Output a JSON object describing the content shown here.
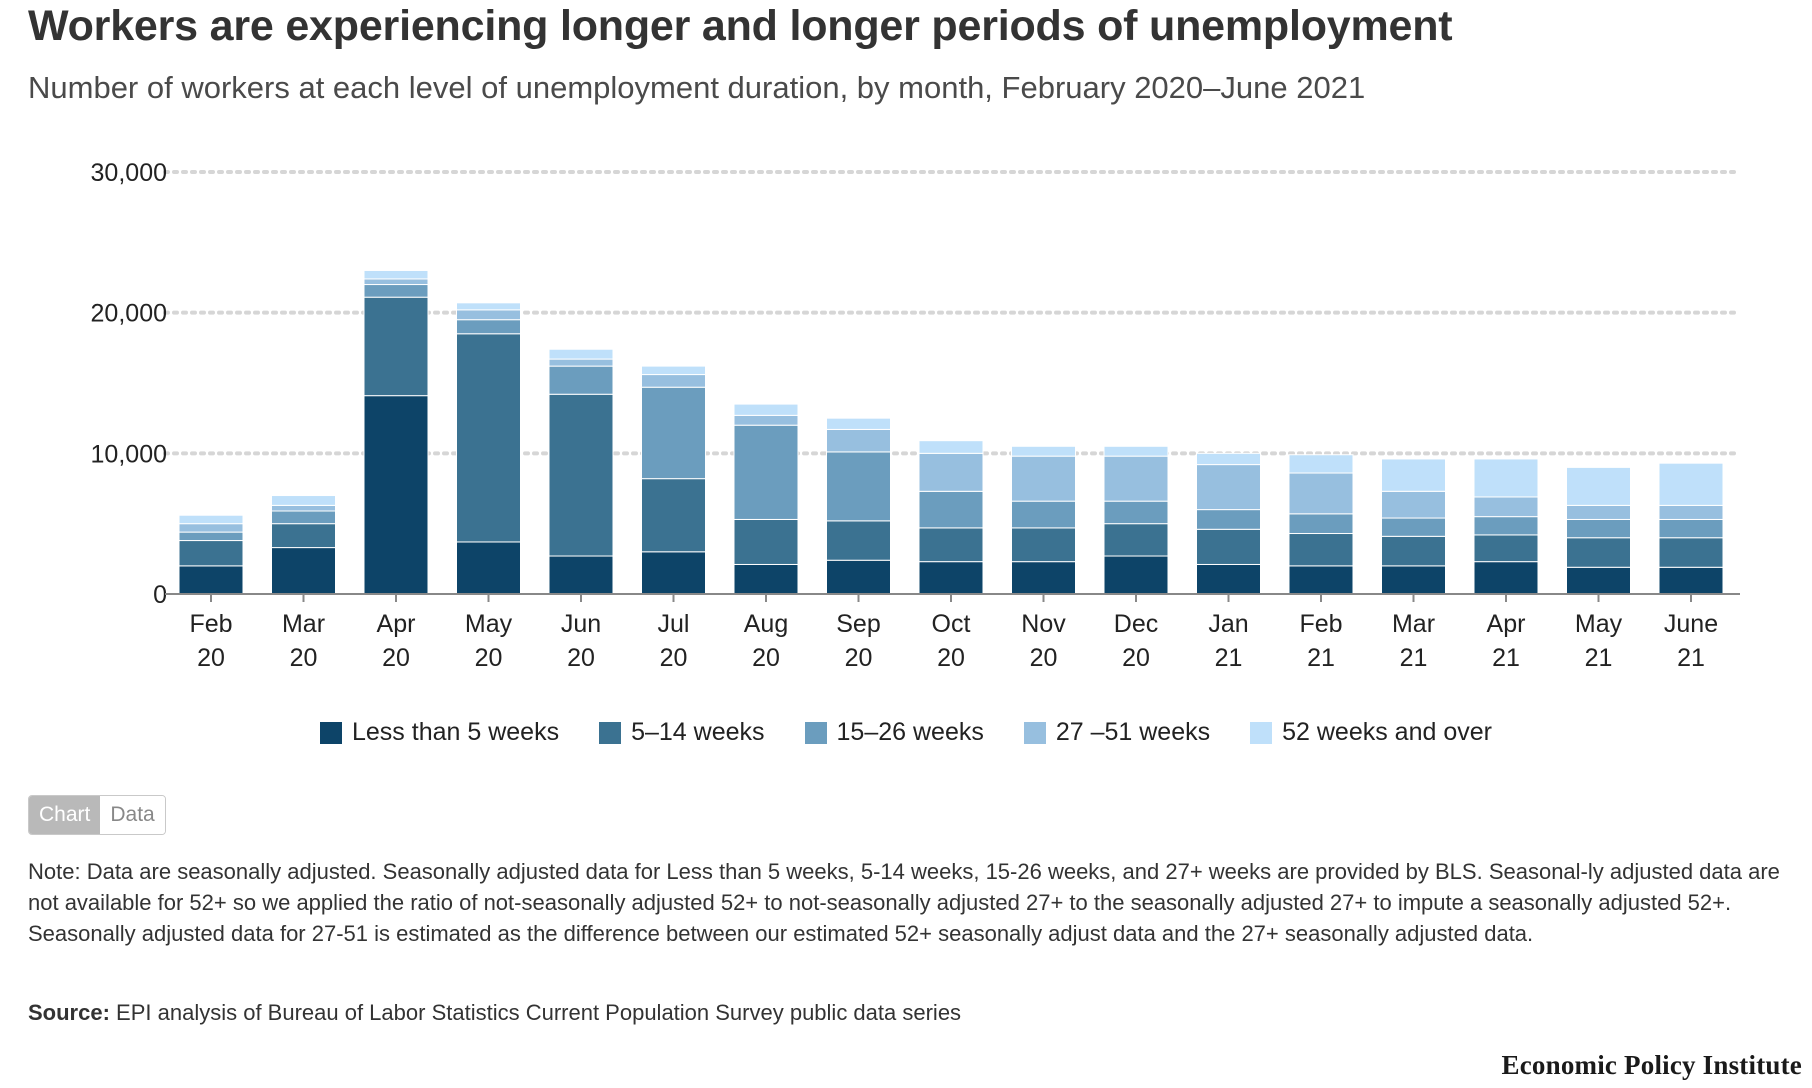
{
  "title": "Workers are experiencing longer and longer periods of unemployment",
  "subtitle": "Number of workers at each level of unemployment duration, by month, February 2020–June 2021",
  "chart_data": {
    "type": "bar",
    "stacked": true,
    "title": "Workers are experiencing longer and longer periods of unemployment",
    "subtitle": "Number of workers at each level of unemployment duration, by month, February 2020–June 2021",
    "xlabel": "",
    "ylabel": "",
    "ylim": [
      0,
      30000
    ],
    "yticks": [
      0,
      10000,
      20000,
      30000
    ],
    "ytick_labels": [
      "0",
      "10,000",
      "20,000",
      "30,000"
    ],
    "grid": "horizontal dotted",
    "legend_position": "bottom",
    "categories": [
      {
        "line1": "Feb",
        "line2": "20"
      },
      {
        "line1": "Mar",
        "line2": "20"
      },
      {
        "line1": "Apr",
        "line2": "20"
      },
      {
        "line1": "May",
        "line2": "20"
      },
      {
        "line1": "Jun",
        "line2": "20"
      },
      {
        "line1": "Jul",
        "line2": "20"
      },
      {
        "line1": "Aug",
        "line2": "20"
      },
      {
        "line1": "Sep",
        "line2": "20"
      },
      {
        "line1": "Oct",
        "line2": "20"
      },
      {
        "line1": "Nov",
        "line2": "20"
      },
      {
        "line1": "Dec",
        "line2": "20"
      },
      {
        "line1": "Jan",
        "line2": "21"
      },
      {
        "line1": "Feb",
        "line2": "21"
      },
      {
        "line1": "Mar",
        "line2": "21"
      },
      {
        "line1": "Apr",
        "line2": "21"
      },
      {
        "line1": "May",
        "line2": "21"
      },
      {
        "line1": "June",
        "line2": "21"
      }
    ],
    "series": [
      {
        "name": "Less than 5 weeks",
        "color": "#0d4468",
        "values": [
          2000,
          3300,
          14100,
          3700,
          2700,
          3000,
          2100,
          2400,
          2300,
          2300,
          2700,
          2100,
          2000,
          2000,
          2300,
          1900,
          1900
        ]
      },
      {
        "name": "5–14 weeks",
        "color": "#3b7291",
        "values": [
          1800,
          1700,
          7000,
          14800,
          11500,
          5200,
          3200,
          2800,
          2400,
          2400,
          2300,
          2500,
          2300,
          2100,
          1900,
          2100,
          2100
        ]
      },
      {
        "name": "15–26 weeks",
        "color": "#6b9dbe",
        "values": [
          600,
          900,
          900,
          1000,
          2000,
          6500,
          6700,
          4900,
          2600,
          1900,
          1600,
          1400,
          1400,
          1300,
          1300,
          1300,
          1300
        ]
      },
      {
        "name": "27 –51 weeks",
        "color": "#97bfdf",
        "values": [
          600,
          400,
          400,
          700,
          500,
          900,
          700,
          1600,
          2700,
          3200,
          3200,
          3200,
          2900,
          1900,
          1400,
          1000,
          1000
        ]
      },
      {
        "name": "52 weeks and over",
        "color": "#bfe0fa",
        "values": [
          600,
          700,
          600,
          500,
          700,
          600,
          800,
          800,
          900,
          700,
          700,
          800,
          1300,
          2300,
          2700,
          2700,
          3000
        ]
      }
    ]
  },
  "toggle": {
    "chart_label": "Chart",
    "data_label": "Data"
  },
  "note": "Note: Data are seasonally adjusted. Seasonally adjusted data for Less than 5 weeks, 5-14 weeks, 15-26 weeks, and 27+ weeks are provided by BLS. Seasonal-ly adjusted data are not available for 52+ so we applied the ratio of not-seasonally adjusted 52+ to not-seasonally adjusted 27+ to the seasonally adjusted 27+ to impute a seasonally adjusted 52+. Seasonally adjusted data for 27-51 is estimated as the difference between our estimated 52+ seasonally adjust data and the 27+ seasonally adjusted data.",
  "source": {
    "label": "Source:",
    "text": "EPI analysis of Bureau of Labor Statistics Current Population Survey public data series"
  },
  "logo": "Economic Policy Institute"
}
